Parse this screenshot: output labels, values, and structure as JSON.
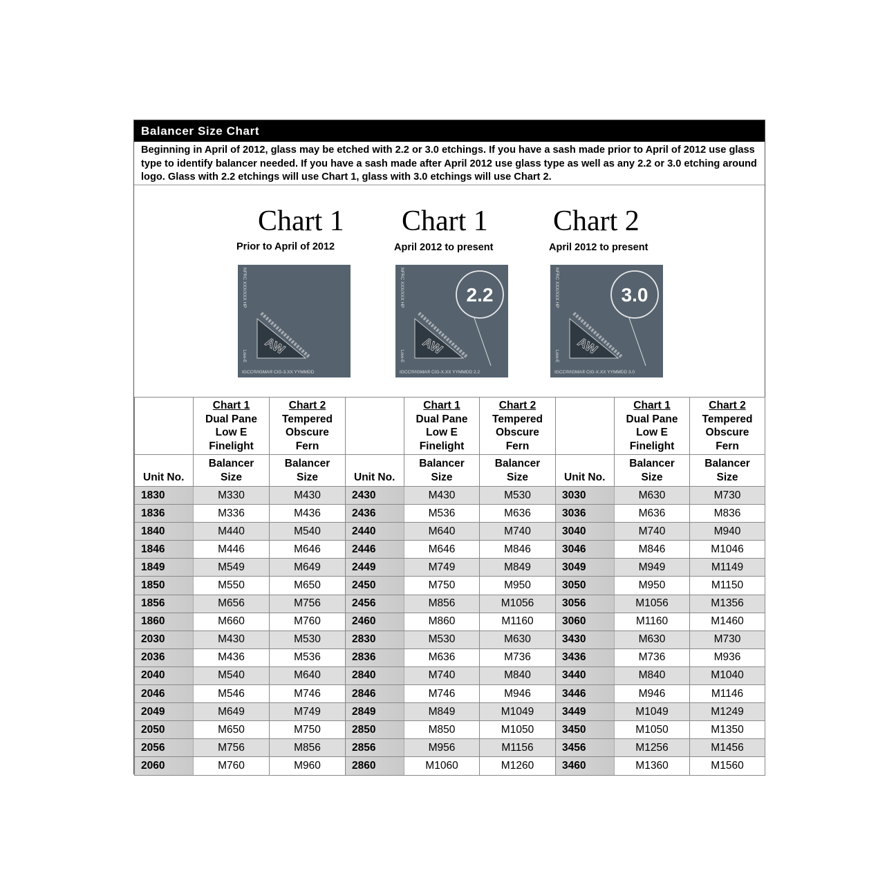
{
  "title": "Balancer Size Chart",
  "intro": "Beginning in April of 2012, glass may be etched with 2.2 or 3.0 etchings.  If you have a sash made prior to April of 2012 use glass type to identify balancer needed.  If you have a sash made after April 2012 use glass type as well as any 2.2 or 3.0 etching around logo. Glass with 2.2 etchings will use Chart 1, glass with 3.0 etchings will use Chart 2.",
  "glass_samples": [
    {
      "chart": "Chart 1",
      "period": "Prior to April of 2012",
      "side_text": "NFRC XXX/XXX HP",
      "low_e": "Low-E",
      "logo": "Andersen AW",
      "bottom_text": "IGCC®/IGMA® CIG-3.XX YYMMDD",
      "etching": ""
    },
    {
      "chart": "Chart 1",
      "period": "April 2012 to present",
      "side_text": "NFRC XXX/XXX HP",
      "low_e": "Low-E",
      "logo": "Andersen AW",
      "bottom_text": "IGCC®/IGMA® CIG-X.XX YYMMDD 2.2",
      "etching": "2.2"
    },
    {
      "chart": "Chart 2",
      "period": "April 2012 to present",
      "side_text": "NFRC XXX/XXX HP",
      "low_e": "Low-E",
      "logo": "Andersen AW",
      "bottom_text": "IGCC®/IGMA® CIG-X.XX YYMMDD 3.0",
      "etching": "3.0"
    }
  ],
  "colors": {
    "glass": "#56636f",
    "header_bg": "#000000",
    "row_shade": "#dedede",
    "unit_shade": "#cccccc"
  },
  "table": {
    "chart1_label": "Chart 1",
    "chart1_desc": [
      "Dual Pane",
      "Low E",
      "Finelight"
    ],
    "chart2_label": "Chart 2",
    "chart2_desc": [
      "Tempered",
      "Obscure",
      "Fern"
    ],
    "unit_header": "Unit No.",
    "size_header": [
      "Balancer",
      "Size"
    ],
    "rows": [
      [
        "1830",
        "M330",
        "M430",
        "2430",
        "M430",
        "M530",
        "3030",
        "M630",
        "M730"
      ],
      [
        "1836",
        "M336",
        "M436",
        "2436",
        "M536",
        "M636",
        "3036",
        "M636",
        "M836"
      ],
      [
        "1840",
        "M440",
        "M540",
        "2440",
        "M640",
        "M740",
        "3040",
        "M740",
        "M940"
      ],
      [
        "1846",
        "M446",
        "M646",
        "2446",
        "M646",
        "M846",
        "3046",
        "M846",
        "M1046"
      ],
      [
        "1849",
        "M549",
        "M649",
        "2449",
        "M749",
        "M849",
        "3049",
        "M949",
        "M1149"
      ],
      [
        "1850",
        "M550",
        "M650",
        "2450",
        "M750",
        "M950",
        "3050",
        "M950",
        "M1150"
      ],
      [
        "1856",
        "M656",
        "M756",
        "2456",
        "M856",
        "M1056",
        "3056",
        "M1056",
        "M1356"
      ],
      [
        "1860",
        "M660",
        "M760",
        "2460",
        "M860",
        "M1160",
        "3060",
        "M1160",
        "M1460"
      ],
      [
        "2030",
        "M430",
        "M530",
        "2830",
        "M530",
        "M630",
        "3430",
        "M630",
        "M730"
      ],
      [
        "2036",
        "M436",
        "M536",
        "2836",
        "M636",
        "M736",
        "3436",
        "M736",
        "M936"
      ],
      [
        "2040",
        "M540",
        "M640",
        "2840",
        "M740",
        "M840",
        "3440",
        "M840",
        "M1040"
      ],
      [
        "2046",
        "M546",
        "M746",
        "2846",
        "M746",
        "M946",
        "3446",
        "M946",
        "M1146"
      ],
      [
        "2049",
        "M649",
        "M749",
        "2849",
        "M849",
        "M1049",
        "3449",
        "M1049",
        "M1249"
      ],
      [
        "2050",
        "M650",
        "M750",
        "2850",
        "M850",
        "M1050",
        "3450",
        "M1050",
        "M1350"
      ],
      [
        "2056",
        "M756",
        "M856",
        "2856",
        "M956",
        "M1156",
        "3456",
        "M1256",
        "M1456"
      ],
      [
        "2060",
        "M760",
        "M960",
        "2860",
        "M1060",
        "M1260",
        "3460",
        "M1360",
        "M1560"
      ]
    ]
  }
}
